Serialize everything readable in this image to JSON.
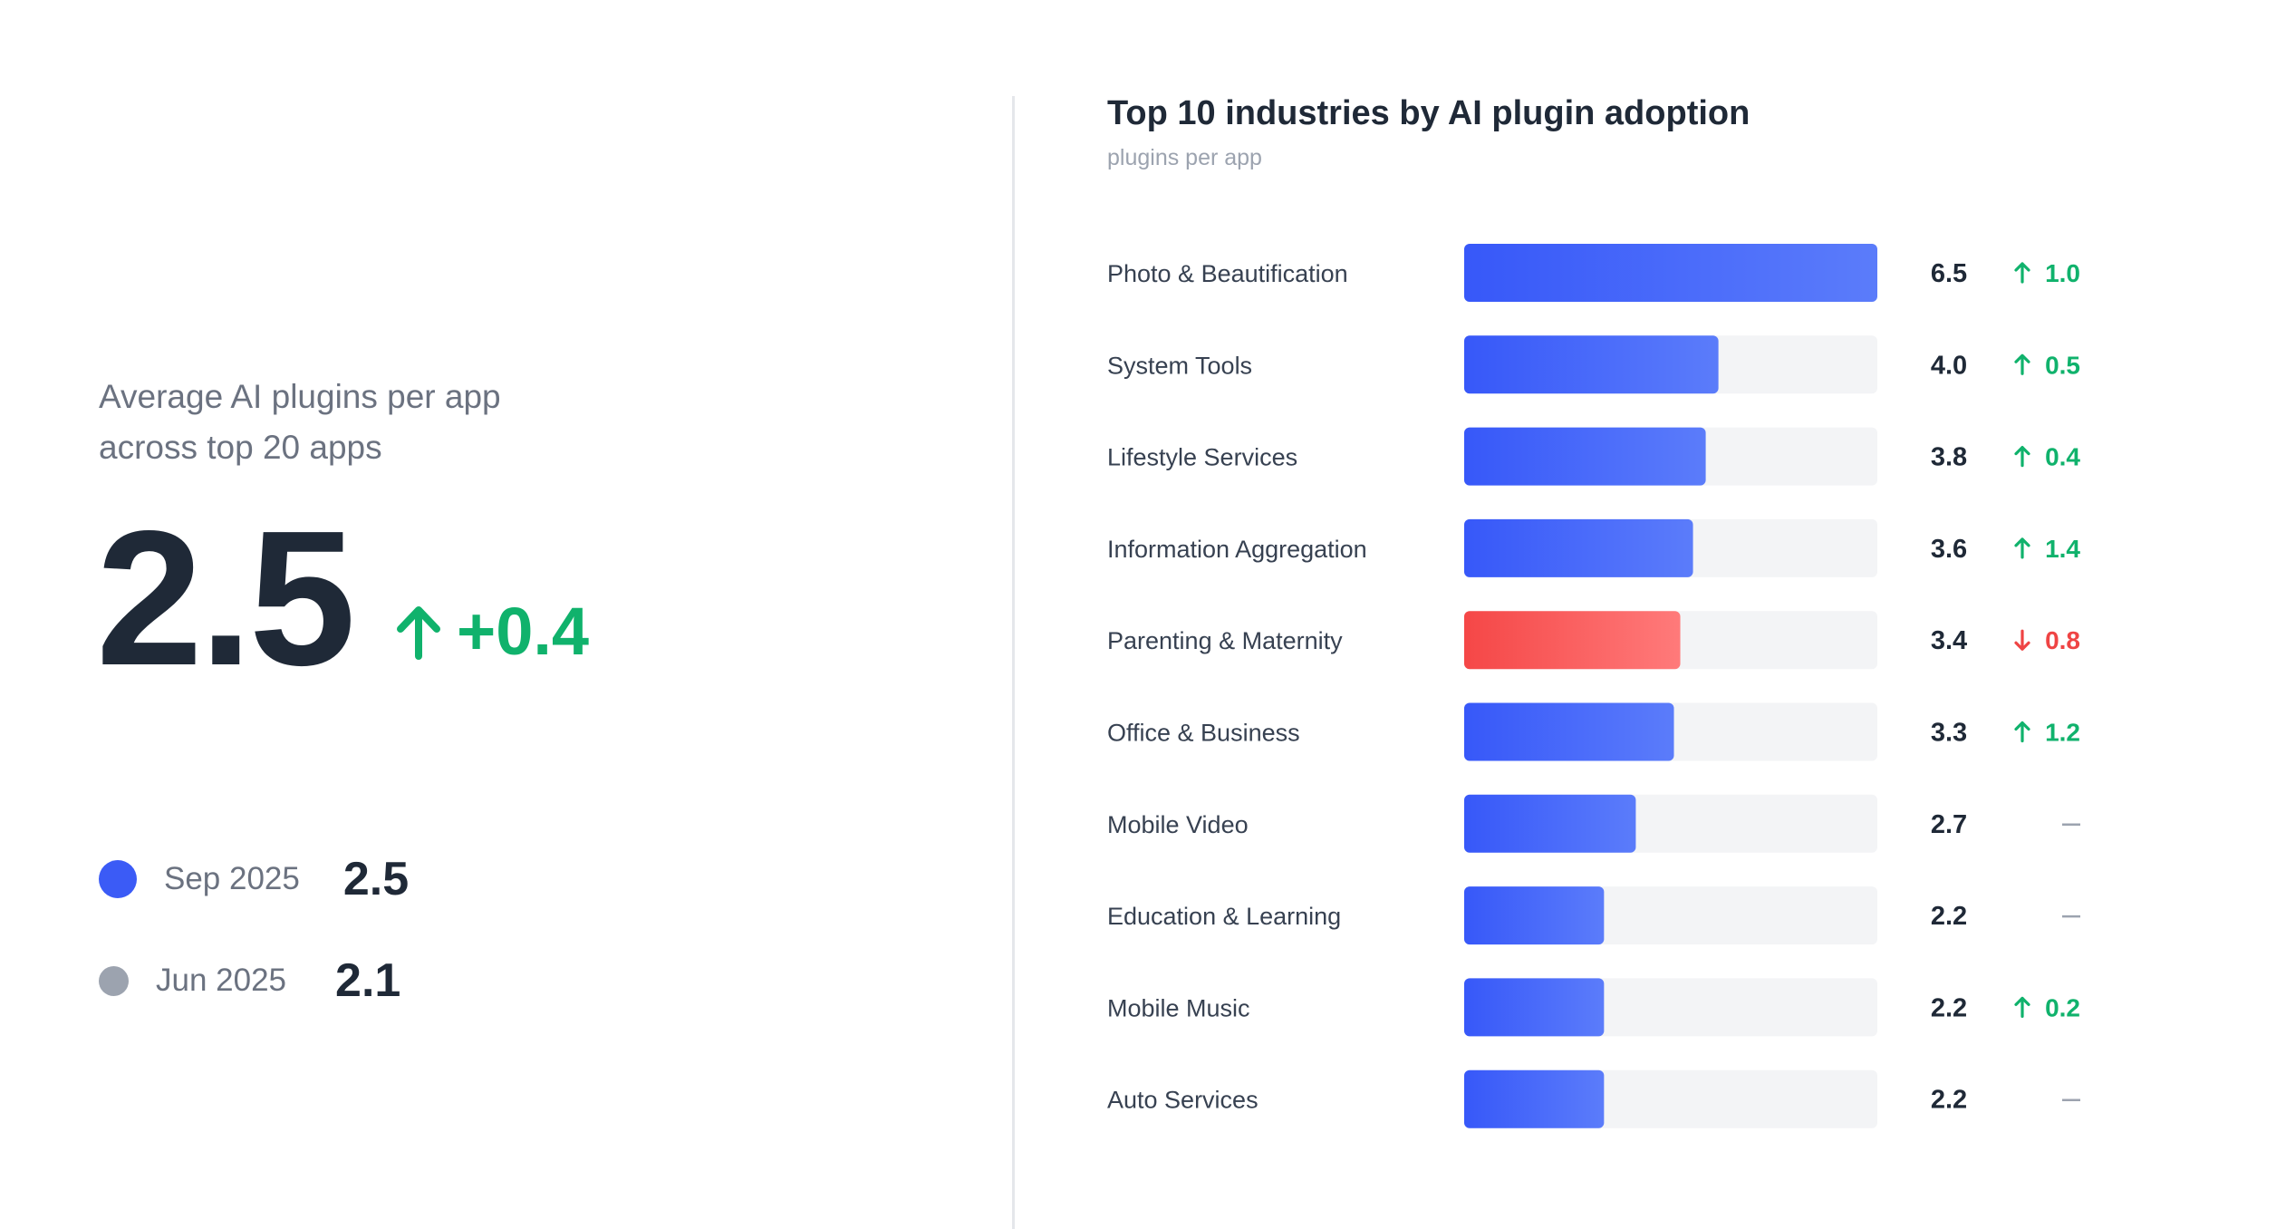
{
  "kpi": {
    "caption_line1": "Average AI plugins per app",
    "caption_line2": "across top 20 apps",
    "value": "2.5",
    "delta": "+0.4",
    "delta_direction": "up",
    "delta_color": "#10b26c",
    "legend": [
      {
        "period": "Sep 2025",
        "value": "2.5",
        "color": "#3b5bf6"
      },
      {
        "period": "Jun 2025",
        "value": "2.1",
        "color": "#9ca3af"
      }
    ]
  },
  "colors": {
    "bar_primary_start": "#3758f9",
    "bar_primary_end": "#5b7cfa",
    "bar_negative_start": "#f54747",
    "bar_negative_end": "#ff7a7a",
    "track": "#f3f4f6",
    "up": "#10b26c",
    "down": "#ef4444",
    "neutral": "#9ca3af"
  },
  "chart_data": {
    "type": "bar",
    "orientation": "horizontal",
    "title": "Top 10 industries by AI plugin adoption",
    "subtitle": "plugins per app",
    "xlim": [
      0,
      6.5
    ],
    "grid": false,
    "categories": [
      "Photo & Beautification",
      "System Tools",
      "Lifestyle Services",
      "Information Aggregation",
      "Parenting & Maternity",
      "Office & Business",
      "Mobile Video",
      "Education & Learning",
      "Mobile Music",
      "Auto Services"
    ],
    "values": [
      6.5,
      4.0,
      3.8,
      3.6,
      3.4,
      3.3,
      2.7,
      2.2,
      2.2,
      2.2
    ],
    "value_labels": [
      "6.5",
      "4.0",
      "3.8",
      "3.6",
      "3.4",
      "3.3",
      "2.7",
      "2.2",
      "2.2",
      "2.2"
    ],
    "changes": [
      {
        "direction": "up",
        "label": "1.0"
      },
      {
        "direction": "up",
        "label": "0.5"
      },
      {
        "direction": "up",
        "label": "0.4"
      },
      {
        "direction": "up",
        "label": "1.4"
      },
      {
        "direction": "down",
        "label": "0.8"
      },
      {
        "direction": "up",
        "label": "1.2"
      },
      {
        "direction": "flat",
        "label": "—"
      },
      {
        "direction": "flat",
        "label": "—"
      },
      {
        "direction": "up",
        "label": "0.2"
      },
      {
        "direction": "flat",
        "label": "—"
      }
    ]
  }
}
